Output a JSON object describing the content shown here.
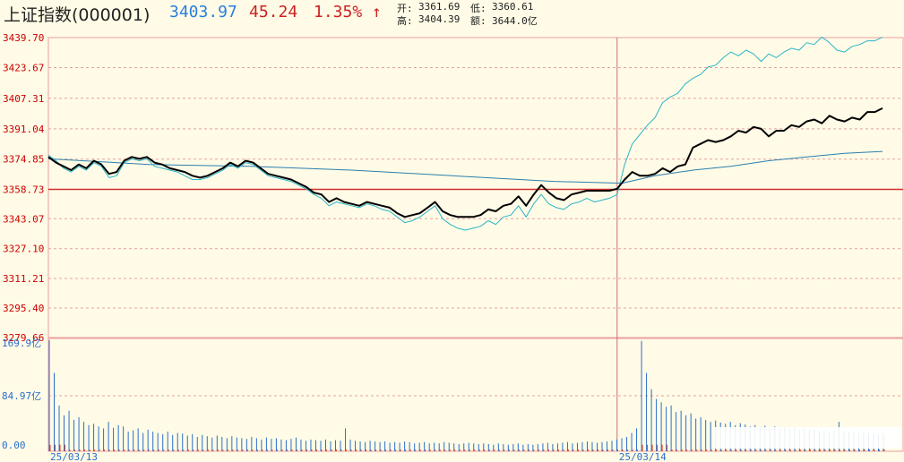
{
  "header": {
    "title": "上证指数(000001)",
    "price": "3403.97",
    "change": "45.24",
    "change_pct": "1.35%",
    "arrow": "↑",
    "open_label": "开:",
    "open": "3361.69",
    "low_label": "低:",
    "low": "3360.61",
    "high_label": "高:",
    "high": "3404.39",
    "amount_label": "额:",
    "amount": "3644.0亿"
  },
  "colors": {
    "background": "#fffbe6",
    "grid": "#e8a0a0",
    "price_line": "#000000",
    "index_line": "#2ab4c8",
    "avg_line": "#2a7fb0",
    "volume": "#2a6fcc",
    "volume_red": "#e04020",
    "up": "#cc2222",
    "blue_price": "#2a7fdc"
  },
  "chart_data": {
    "type": "line",
    "title": "上证指数(000001)",
    "y_ticks": [
      "3439.70",
      "3423.67",
      "3407.31",
      "3391.04",
      "3374.85",
      "3358.73",
      "3343.07",
      "3327.10",
      "3311.21",
      "3295.40",
      "3279.66"
    ],
    "ylim": [
      3279.66,
      3439.7
    ],
    "prev_close": 3358.73,
    "x_labels": [
      "25/03/13",
      "25/03/14"
    ],
    "volume_ticks": [
      "169.9亿",
      "84.97亿",
      "0.00"
    ],
    "volume_max": 169.9,
    "series": [
      {
        "key": "price",
        "points": [
          [
            0,
            3376
          ],
          [
            3,
            3373
          ],
          [
            6,
            3371
          ],
          [
            9,
            3369
          ],
          [
            12,
            3372
          ],
          [
            15,
            3370
          ],
          [
            18,
            3374
          ],
          [
            21,
            3372
          ],
          [
            24,
            3367
          ],
          [
            27,
            3368
          ],
          [
            30,
            3374
          ],
          [
            33,
            3376
          ],
          [
            36,
            3375
          ],
          [
            39,
            3376
          ],
          [
            42,
            3373
          ],
          [
            45,
            3372
          ],
          [
            48,
            3370
          ],
          [
            51,
            3369
          ],
          [
            54,
            3368
          ],
          [
            57,
            3366
          ],
          [
            60,
            3365
          ],
          [
            63,
            3366
          ],
          [
            66,
            3368
          ],
          [
            69,
            3370
          ],
          [
            72,
            3373
          ],
          [
            75,
            3371
          ],
          [
            78,
            3374
          ],
          [
            81,
            3373
          ],
          [
            84,
            3370
          ],
          [
            87,
            3367
          ],
          [
            90,
            3366
          ],
          [
            93,
            3365
          ],
          [
            96,
            3364
          ],
          [
            99,
            3362
          ],
          [
            102,
            3360
          ],
          [
            105,
            3357
          ],
          [
            108,
            3356
          ],
          [
            111,
            3352
          ],
          [
            114,
            3354
          ],
          [
            117,
            3352
          ],
          [
            120,
            3351
          ],
          [
            123,
            3350
          ],
          [
            126,
            3352
          ],
          [
            129,
            3351
          ],
          [
            132,
            3350
          ],
          [
            135,
            3349
          ],
          [
            138,
            3346
          ],
          [
            141,
            3344
          ],
          [
            144,
            3345
          ],
          [
            147,
            3346
          ],
          [
            150,
            3349
          ],
          [
            153,
            3352
          ],
          [
            156,
            3347
          ],
          [
            159,
            3345
          ],
          [
            162,
            3344
          ],
          [
            165,
            3344
          ],
          [
            168,
            3344
          ],
          [
            171,
            3345
          ],
          [
            174,
            3348
          ],
          [
            177,
            3347
          ],
          [
            180,
            3350
          ],
          [
            183,
            3351
          ],
          [
            186,
            3355
          ],
          [
            189,
            3350
          ],
          [
            192,
            3356
          ],
          [
            195,
            3361
          ],
          [
            198,
            3357
          ],
          [
            201,
            3354
          ],
          [
            204,
            3353
          ],
          [
            207,
            3356
          ],
          [
            210,
            3357
          ],
          [
            213,
            3358
          ],
          [
            216,
            3358
          ],
          [
            219,
            3358
          ],
          [
            222,
            3358
          ],
          [
            225,
            3359
          ],
          [
            228,
            3364
          ],
          [
            231,
            3368
          ],
          [
            234,
            3366
          ],
          [
            237,
            3366
          ],
          [
            240,
            3367
          ],
          [
            243,
            3370
          ],
          [
            246,
            3368
          ],
          [
            249,
            3371
          ],
          [
            252,
            3372
          ],
          [
            255,
            3381
          ],
          [
            258,
            3383
          ],
          [
            261,
            3385
          ],
          [
            264,
            3384
          ],
          [
            267,
            3385
          ],
          [
            270,
            3387
          ],
          [
            273,
            3390
          ],
          [
            276,
            3389
          ],
          [
            279,
            3392
          ],
          [
            282,
            3391
          ],
          [
            285,
            3387
          ],
          [
            288,
            3390
          ],
          [
            291,
            3390
          ],
          [
            294,
            3393
          ],
          [
            297,
            3392
          ],
          [
            300,
            3395
          ],
          [
            303,
            3396
          ],
          [
            306,
            3394
          ],
          [
            309,
            3398
          ],
          [
            312,
            3396
          ],
          [
            315,
            3395
          ],
          [
            318,
            3397
          ],
          [
            321,
            3396
          ],
          [
            324,
            3400
          ],
          [
            327,
            3400
          ],
          [
            330,
            3402
          ]
        ]
      },
      {
        "key": "index",
        "points": [
          [
            0,
            3377
          ],
          [
            3,
            3374
          ],
          [
            6,
            3370
          ],
          [
            9,
            3368
          ],
          [
            12,
            3371
          ],
          [
            15,
            3369
          ],
          [
            18,
            3373
          ],
          [
            21,
            3371
          ],
          [
            24,
            3365
          ],
          [
            27,
            3366
          ],
          [
            30,
            3373
          ],
          [
            33,
            3375
          ],
          [
            36,
            3374
          ],
          [
            39,
            3375
          ],
          [
            42,
            3371
          ],
          [
            45,
            3370
          ],
          [
            48,
            3369
          ],
          [
            51,
            3368
          ],
          [
            54,
            3366
          ],
          [
            57,
            3364
          ],
          [
            60,
            3364
          ],
          [
            63,
            3365
          ],
          [
            66,
            3367
          ],
          [
            69,
            3369
          ],
          [
            72,
            3372
          ],
          [
            75,
            3370
          ],
          [
            78,
            3373
          ],
          [
            81,
            3372
          ],
          [
            84,
            3369
          ],
          [
            87,
            3366
          ],
          [
            90,
            3365
          ],
          [
            93,
            3364
          ],
          [
            96,
            3363
          ],
          [
            99,
            3361
          ],
          [
            102,
            3359
          ],
          [
            105,
            3356
          ],
          [
            108,
            3354
          ],
          [
            111,
            3350
          ],
          [
            114,
            3352
          ],
          [
            117,
            3351
          ],
          [
            120,
            3350
          ],
          [
            123,
            3349
          ],
          [
            126,
            3351
          ],
          [
            129,
            3350
          ],
          [
            132,
            3348
          ],
          [
            135,
            3347
          ],
          [
            138,
            3344
          ],
          [
            141,
            3341
          ],
          [
            144,
            3342
          ],
          [
            147,
            3344
          ],
          [
            150,
            3347
          ],
          [
            153,
            3350
          ],
          [
            156,
            3343
          ],
          [
            159,
            3340
          ],
          [
            162,
            3338
          ],
          [
            165,
            3337
          ],
          [
            168,
            3338
          ],
          [
            171,
            3339
          ],
          [
            174,
            3342
          ],
          [
            177,
            3340
          ],
          [
            180,
            3344
          ],
          [
            183,
            3345
          ],
          [
            186,
            3350
          ],
          [
            189,
            3344
          ],
          [
            192,
            3351
          ],
          [
            195,
            3356
          ],
          [
            198,
            3351
          ],
          [
            201,
            3349
          ],
          [
            204,
            3348
          ],
          [
            207,
            3351
          ],
          [
            210,
            3352
          ],
          [
            213,
            3354
          ],
          [
            216,
            3352
          ],
          [
            219,
            3353
          ],
          [
            222,
            3354
          ],
          [
            225,
            3356
          ],
          [
            228,
            3372
          ],
          [
            231,
            3383
          ],
          [
            234,
            3388
          ],
          [
            237,
            3393
          ],
          [
            240,
            3397
          ],
          [
            243,
            3405
          ],
          [
            246,
            3408
          ],
          [
            249,
            3410
          ],
          [
            252,
            3415
          ],
          [
            255,
            3418
          ],
          [
            258,
            3420
          ],
          [
            261,
            3424
          ],
          [
            264,
            3425
          ],
          [
            267,
            3429
          ],
          [
            270,
            3432
          ],
          [
            273,
            3430
          ],
          [
            276,
            3433
          ],
          [
            279,
            3431
          ],
          [
            282,
            3427
          ],
          [
            285,
            3431
          ],
          [
            288,
            3429
          ],
          [
            291,
            3432
          ],
          [
            294,
            3434
          ],
          [
            297,
            3433
          ],
          [
            300,
            3437
          ],
          [
            303,
            3436
          ],
          [
            306,
            3440
          ],
          [
            309,
            3437
          ],
          [
            312,
            3433
          ],
          [
            315,
            3432
          ],
          [
            318,
            3435
          ],
          [
            321,
            3436
          ],
          [
            324,
            3438
          ],
          [
            327,
            3438
          ],
          [
            330,
            3440
          ]
        ]
      },
      {
        "key": "avg",
        "points": [
          [
            0,
            3375
          ],
          [
            40,
            3372
          ],
          [
            80,
            3371
          ],
          [
            120,
            3369
          ],
          [
            160,
            3366
          ],
          [
            200,
            3363
          ],
          [
            227,
            3362
          ],
          [
            240,
            3366
          ],
          [
            255,
            3369
          ],
          [
            270,
            3371
          ],
          [
            285,
            3374
          ],
          [
            300,
            3376
          ],
          [
            315,
            3378
          ],
          [
            330,
            3379
          ]
        ]
      }
    ],
    "volume": [
      170,
      120,
      70,
      55,
      62,
      48,
      52,
      45,
      40,
      42,
      38,
      35,
      45,
      36,
      40,
      38,
      30,
      32,
      35,
      28,
      33,
      30,
      28,
      26,
      30,
      25,
      28,
      27,
      24,
      26,
      22,
      25,
      23,
      21,
      24,
      22,
      20,
      23,
      21,
      20,
      19,
      22,
      20,
      18,
      21,
      19,
      20,
      18,
      17,
      19,
      21,
      18,
      16,
      18,
      17,
      16,
      18,
      15,
      17,
      16,
      35,
      18,
      16,
      15,
      14,
      16,
      15,
      14,
      15,
      13,
      14,
      13,
      15,
      14,
      12,
      13,
      14,
      12,
      13,
      12,
      14,
      13,
      12,
      11,
      12,
      13,
      12,
      11,
      12,
      11,
      10,
      12,
      11,
      10,
      11,
      12,
      10,
      11,
      10,
      11,
      12,
      13,
      11,
      12,
      13,
      14,
      12,
      13,
      14,
      15,
      14,
      13,
      14,
      15,
      16,
      18,
      20,
      22,
      28,
      35,
      169,
      120,
      95,
      80,
      75,
      68,
      70,
      60,
      62,
      55,
      58,
      50,
      52,
      48,
      45,
      47,
      44,
      42,
      45,
      40,
      43,
      41,
      38,
      40,
      37,
      39,
      36,
      38,
      35,
      37,
      34,
      36,
      33,
      35,
      32,
      34,
      31,
      33,
      30,
      32,
      45,
      31,
      29,
      30,
      28,
      29,
      27,
      28,
      26,
      27
    ],
    "volume_red_positions": [
      0,
      1,
      2,
      3,
      120,
      121,
      122,
      123,
      124,
      125
    ]
  }
}
